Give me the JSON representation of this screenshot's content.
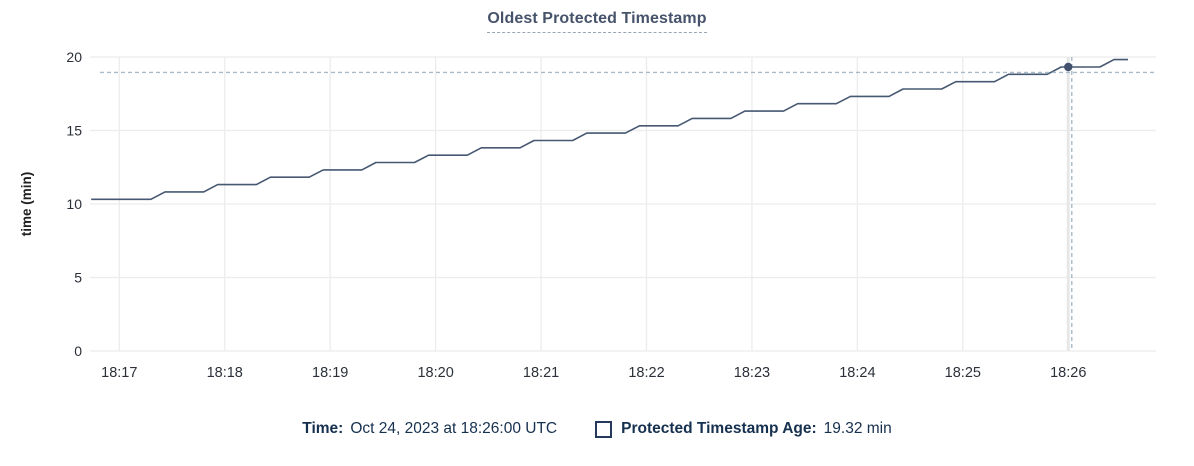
{
  "title": {
    "text": "Oldest Protected Timestamp"
  },
  "footer": {
    "time_label": "Time:",
    "time_value": "Oct 24, 2023 at 18:26:00 UTC",
    "series_label": "Protected Timestamp Age:",
    "series_value": "19.32 min"
  },
  "colors": {
    "background": "#ffffff",
    "series_line": "#475872",
    "grid": "#ececec",
    "hover_track": "#e7e7e7",
    "crosshair": "#a6bac9",
    "highlight_dot": "#42526d",
    "axis_text": "#2b3039",
    "axis_title_text": "#1f1f1f",
    "title_text": "#46536b",
    "footer_text": "#16304f",
    "swatch_border": "#24395c"
  },
  "chart_data": {
    "type": "line",
    "title": "Oldest Protected Timestamp",
    "xlabel": "",
    "ylabel": "time (min)",
    "ylim": [
      0,
      20
    ],
    "yticks": [
      0,
      5,
      10,
      15,
      20
    ],
    "grid": true,
    "legend_position": "bottom",
    "x_unit": "seconds after 18:16:00 UTC",
    "xticks": [
      {
        "t": 60,
        "label": "18:17"
      },
      {
        "t": 120,
        "label": "18:18"
      },
      {
        "t": 180,
        "label": "18:19"
      },
      {
        "t": 240,
        "label": "18:20"
      },
      {
        "t": 300,
        "label": "18:21"
      },
      {
        "t": 360,
        "label": "18:22"
      },
      {
        "t": 420,
        "label": "18:23"
      },
      {
        "t": 480,
        "label": "18:24"
      },
      {
        "t": 540,
        "label": "18:25"
      },
      {
        "t": 600,
        "label": "18:26"
      }
    ],
    "series": [
      {
        "name": "Protected Timestamp Age",
        "points": [
          [
            44,
            10.32
          ],
          [
            78,
            10.32
          ],
          [
            86,
            10.82
          ],
          [
            108,
            10.82
          ],
          [
            116,
            11.32
          ],
          [
            138,
            11.32
          ],
          [
            146,
            11.82
          ],
          [
            168,
            11.82
          ],
          [
            176,
            12.32
          ],
          [
            198,
            12.32
          ],
          [
            206,
            12.82
          ],
          [
            228,
            12.82
          ],
          [
            236,
            13.32
          ],
          [
            258,
            13.32
          ],
          [
            266,
            13.82
          ],
          [
            288,
            13.82
          ],
          [
            296,
            14.32
          ],
          [
            318,
            14.32
          ],
          [
            326,
            14.82
          ],
          [
            348,
            14.82
          ],
          [
            356,
            15.32
          ],
          [
            378,
            15.32
          ],
          [
            386,
            15.82
          ],
          [
            408,
            15.82
          ],
          [
            416,
            16.32
          ],
          [
            438,
            16.32
          ],
          [
            446,
            16.82
          ],
          [
            468,
            16.82
          ],
          [
            476,
            17.32
          ],
          [
            498,
            17.32
          ],
          [
            506,
            17.82
          ],
          [
            528,
            17.82
          ],
          [
            536,
            18.32
          ],
          [
            558,
            18.32
          ],
          [
            566,
            18.82
          ],
          [
            588,
            18.82
          ],
          [
            596,
            19.32
          ],
          [
            618,
            19.32
          ],
          [
            626,
            19.82
          ],
          [
            634,
            19.82
          ]
        ]
      }
    ],
    "highlight": {
      "t": 600,
      "value": 19.32,
      "time_label": "18:26:00 UTC",
      "value_label": "19.32 min"
    },
    "crosshair": {
      "t": 602,
      "value": 18.95
    }
  }
}
